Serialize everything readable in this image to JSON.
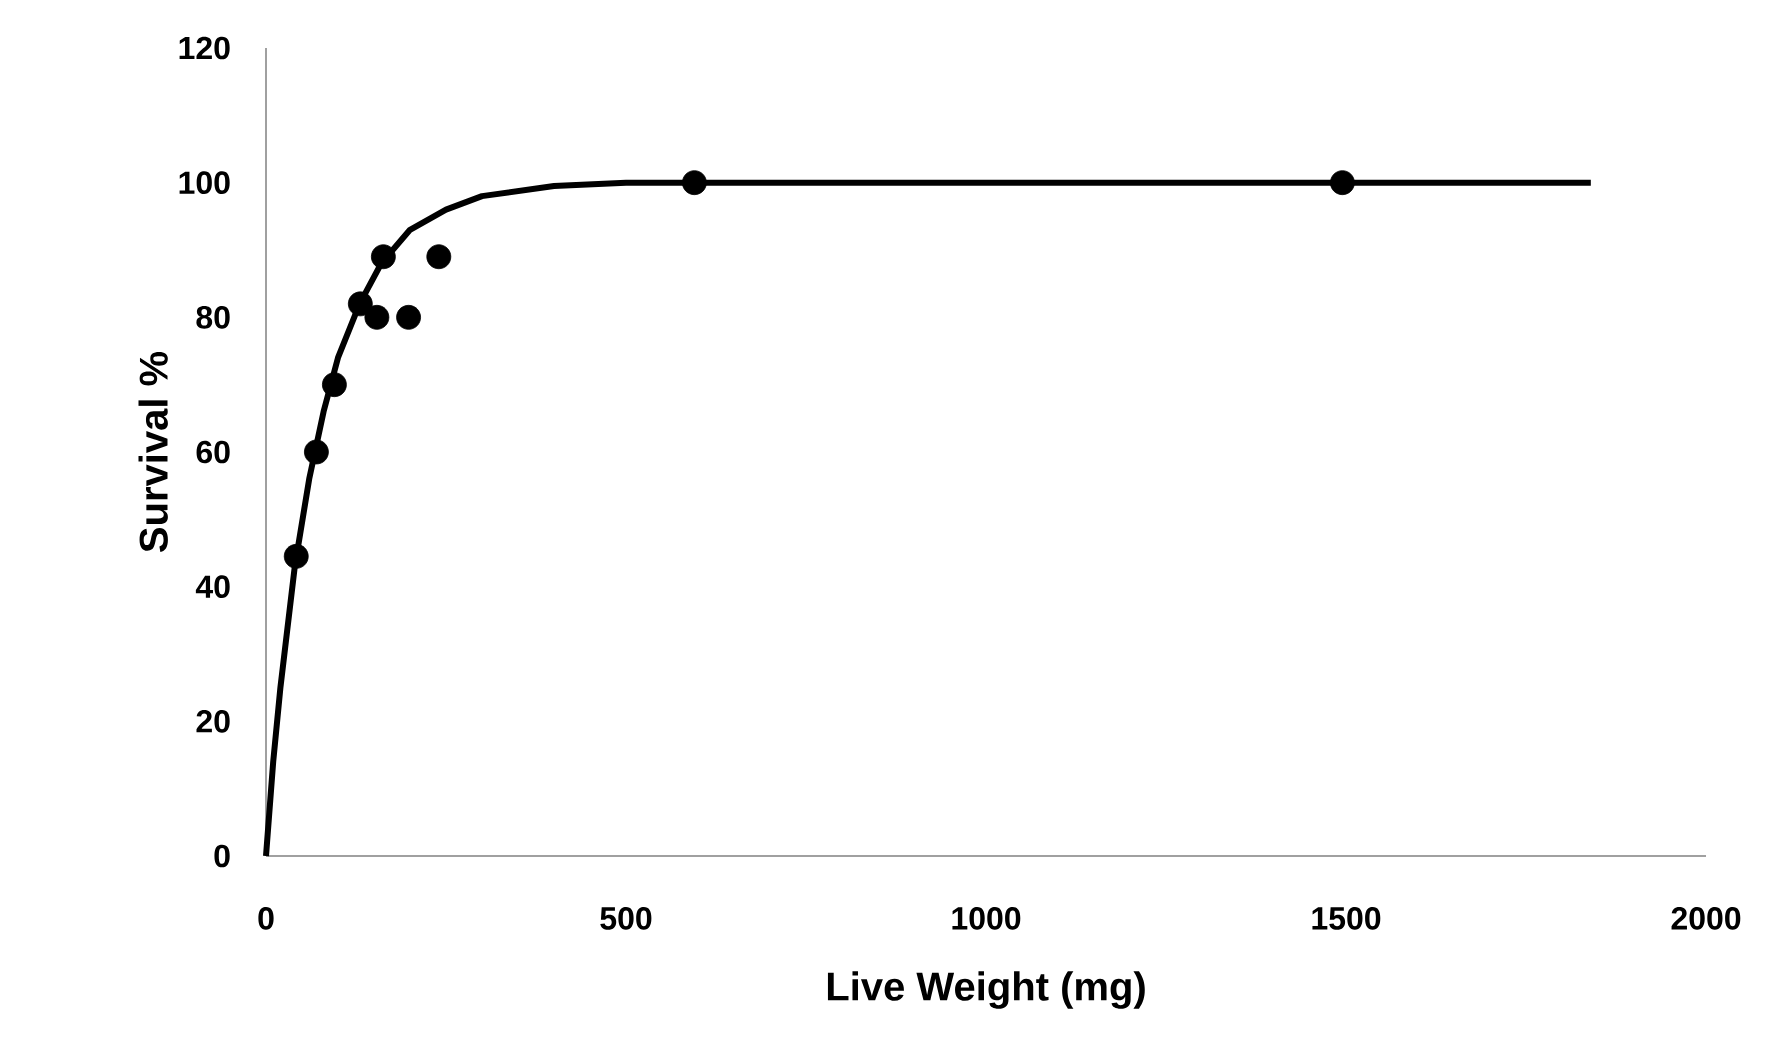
{
  "chart_data": {
    "type": "scatter",
    "xlabel": "Live Weight (mg)",
    "ylabel": "Survival %",
    "xlim": [
      0,
      2000
    ],
    "ylim": [
      0,
      120
    ],
    "xticks": [
      0,
      500,
      1000,
      1500,
      2000
    ],
    "yticks": [
      0,
      20,
      40,
      60,
      80,
      100,
      120
    ],
    "marker": "circle",
    "grid": false,
    "series": [
      {
        "color": "#000000",
        "x": [
          42,
          70,
          95,
          131,
          154,
          163,
          198,
          240,
          595,
          1495
        ],
        "values": [
          44.5,
          60,
          70,
          82,
          80,
          89,
          80,
          89,
          100,
          100
        ]
      },
      {
        "type": "line",
        "color": "#000000",
        "marker": "none",
        "line_style": "solid",
        "x": [
          0,
          10,
          20,
          40,
          60,
          80,
          100,
          130,
          160,
          200,
          250,
          300,
          400,
          500,
          600,
          1000,
          1840
        ],
        "values": [
          0,
          14,
          25,
          43,
          56,
          66,
          74,
          82,
          88,
          93,
          96,
          98,
          99.5,
          100,
          100,
          100,
          100
        ]
      }
    ]
  }
}
